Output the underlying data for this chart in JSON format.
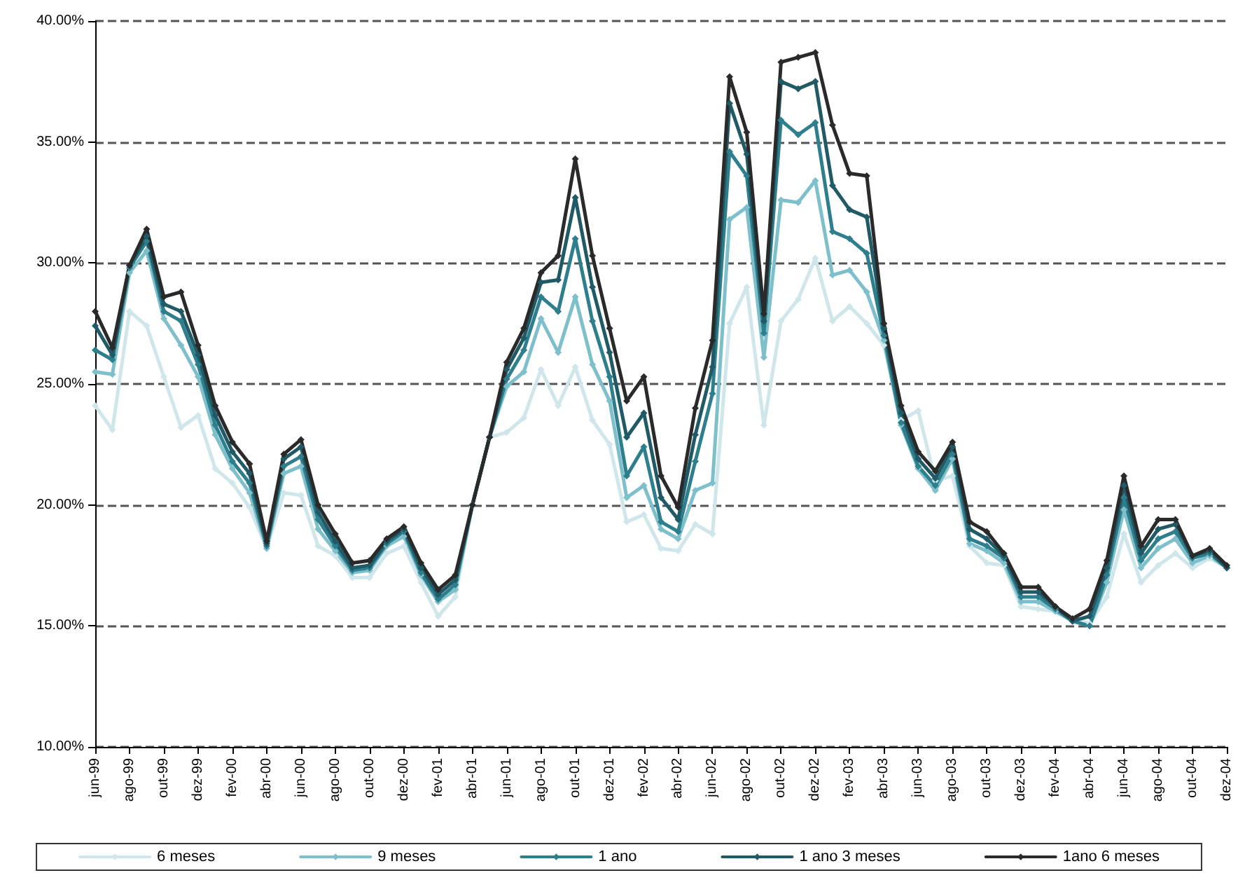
{
  "chart_data": {
    "type": "line",
    "categories": [
      "jun-99",
      null,
      "ago-99",
      null,
      "out-99",
      null,
      "dez-99",
      null,
      "fev-00",
      null,
      "abr-00",
      null,
      "jun-00",
      null,
      "ago-00",
      null,
      "out-00",
      null,
      "dez-00",
      null,
      "fev-01",
      null,
      "abr-01",
      null,
      "jun-01",
      null,
      "ago-01",
      null,
      "out-01",
      null,
      "dez-01",
      null,
      "fev-02",
      null,
      "abr-02",
      null,
      "jun-02",
      null,
      "ago-02",
      null,
      "out-02",
      null,
      "dez-02",
      null,
      "fev-03",
      null,
      "abr-03",
      null,
      "jun-03",
      null,
      "ago-03",
      null,
      "out-03",
      null,
      "dez-03",
      null,
      "fev-04",
      null,
      "abr-04",
      null,
      "jun-04",
      null,
      "ago-04",
      null,
      "out-04",
      null,
      "dez-04"
    ],
    "series": [
      {
        "name": "6 meses",
        "color": "#cfe6ea",
        "values": [
          24.1,
          23.1,
          28.0,
          27.4,
          25.3,
          23.2,
          23.7,
          21.5,
          20.9,
          19.9,
          18.2,
          20.5,
          20.4,
          18.3,
          17.9,
          17.0,
          17.0,
          18.0,
          18.3,
          16.8,
          15.4,
          16.2,
          20.0,
          22.8,
          23.0,
          23.6,
          25.6,
          24.1,
          25.7,
          23.5,
          22.5,
          19.3,
          19.6,
          18.2,
          18.1,
          19.2,
          18.8,
          27.5,
          29.0,
          23.3,
          27.6,
          28.5,
          30.2,
          27.6,
          28.2,
          27.5,
          26.6,
          23.5,
          23.9,
          21.0,
          21.2,
          18.3,
          17.6,
          17.5,
          15.8,
          15.7,
          15.6,
          15.3,
          15.1,
          16.2,
          18.8,
          16.8,
          17.5,
          18.0,
          17.4,
          17.8,
          17.4
        ]
      },
      {
        "name": "9 meses",
        "color": "#7ebfcc",
        "values": [
          25.5,
          25.4,
          29.6,
          30.5,
          27.7,
          26.6,
          25.3,
          22.9,
          21.5,
          20.5,
          18.2,
          21.3,
          21.6,
          19.0,
          18.1,
          17.2,
          17.3,
          18.3,
          18.7,
          17.1,
          16.0,
          16.5,
          20.0,
          22.8,
          24.9,
          25.5,
          27.7,
          26.3,
          28.6,
          25.8,
          24.3,
          20.3,
          20.8,
          19.0,
          18.6,
          20.6,
          20.9,
          31.8,
          32.3,
          26.1,
          32.6,
          32.5,
          33.4,
          29.5,
          29.7,
          28.8,
          26.8,
          23.3,
          21.5,
          20.6,
          21.9,
          18.4,
          18.1,
          17.6,
          16.0,
          16.0,
          15.6,
          15.2,
          15.0,
          16.8,
          19.8,
          17.4,
          18.2,
          18.6,
          17.6,
          17.9,
          17.4
        ]
      },
      {
        "name": "1 ano",
        "color": "#2e7f8e",
        "values": [
          26.4,
          26.0,
          29.8,
          30.9,
          28.0,
          27.6,
          25.8,
          23.3,
          21.8,
          20.9,
          18.3,
          21.6,
          22.0,
          19.4,
          18.3,
          17.3,
          17.4,
          18.4,
          18.9,
          17.2,
          16.1,
          16.7,
          20.0,
          22.8,
          25.2,
          26.4,
          28.6,
          28.0,
          31.0,
          27.6,
          25.3,
          21.2,
          22.4,
          19.3,
          18.9,
          21.8,
          24.6,
          34.6,
          33.6,
          27.1,
          35.9,
          35.3,
          35.8,
          31.3,
          31.0,
          30.4,
          27.0,
          23.4,
          21.6,
          20.8,
          22.1,
          18.6,
          18.3,
          17.8,
          16.2,
          16.2,
          15.7,
          15.2,
          15.0,
          17.1,
          20.3,
          17.7,
          18.6,
          18.9,
          17.8,
          18.0,
          17.4
        ]
      },
      {
        "name": "1 ano 3 meses",
        "color": "#1f5a66",
        "values": [
          27.4,
          26.2,
          29.9,
          31.1,
          28.3,
          28.0,
          26.2,
          23.7,
          22.2,
          21.3,
          18.4,
          21.9,
          22.4,
          19.7,
          18.5,
          17.4,
          17.5,
          18.5,
          19.0,
          17.4,
          16.3,
          16.9,
          20.0,
          22.8,
          25.6,
          26.9,
          29.2,
          29.3,
          32.7,
          29.0,
          26.3,
          22.8,
          23.8,
          20.3,
          19.4,
          22.9,
          25.7,
          36.6,
          34.5,
          27.6,
          37.5,
          37.2,
          37.5,
          33.2,
          32.2,
          31.9,
          27.3,
          23.8,
          21.9,
          21.1,
          22.4,
          19.0,
          18.6,
          17.9,
          16.4,
          16.4,
          15.8,
          15.2,
          15.4,
          17.4,
          20.8,
          18.0,
          19.0,
          19.2,
          17.9,
          18.1,
          17.4
        ]
      },
      {
        "name": "1ano 6 meses",
        "color": "#2a2a2a",
        "values": [
          28.0,
          26.5,
          29.9,
          31.4,
          28.6,
          28.8,
          26.6,
          24.1,
          22.6,
          21.7,
          18.5,
          22.1,
          22.7,
          20.0,
          18.8,
          17.6,
          17.7,
          18.6,
          19.1,
          17.6,
          16.5,
          17.1,
          20.0,
          22.8,
          25.9,
          27.3,
          29.6,
          30.3,
          34.3,
          30.3,
          27.3,
          24.3,
          25.3,
          21.2,
          19.9,
          24.0,
          26.8,
          37.7,
          35.4,
          27.9,
          38.3,
          38.5,
          38.7,
          35.7,
          33.7,
          33.6,
          27.5,
          24.1,
          22.2,
          21.4,
          22.6,
          19.3,
          18.9,
          18.0,
          16.6,
          16.6,
          15.8,
          15.3,
          15.7,
          17.7,
          21.2,
          18.3,
          19.4,
          19.4,
          17.9,
          18.2,
          17.5
        ]
      }
    ],
    "ylim": [
      10,
      40
    ],
    "yticks": [
      {
        "value": 10,
        "label": "10.00%"
      },
      {
        "value": 15,
        "label": "15.00%"
      },
      {
        "value": 20,
        "label": "20.00%"
      },
      {
        "value": 25,
        "label": "25.00%"
      },
      {
        "value": 30,
        "label": "30.00%"
      },
      {
        "value": 35,
        "label": "35.00%"
      },
      {
        "value": 40,
        "label": "40.00%"
      }
    ],
    "grid": "y",
    "legend": "bottom",
    "marker": "diamond",
    "line_style": "solid"
  }
}
